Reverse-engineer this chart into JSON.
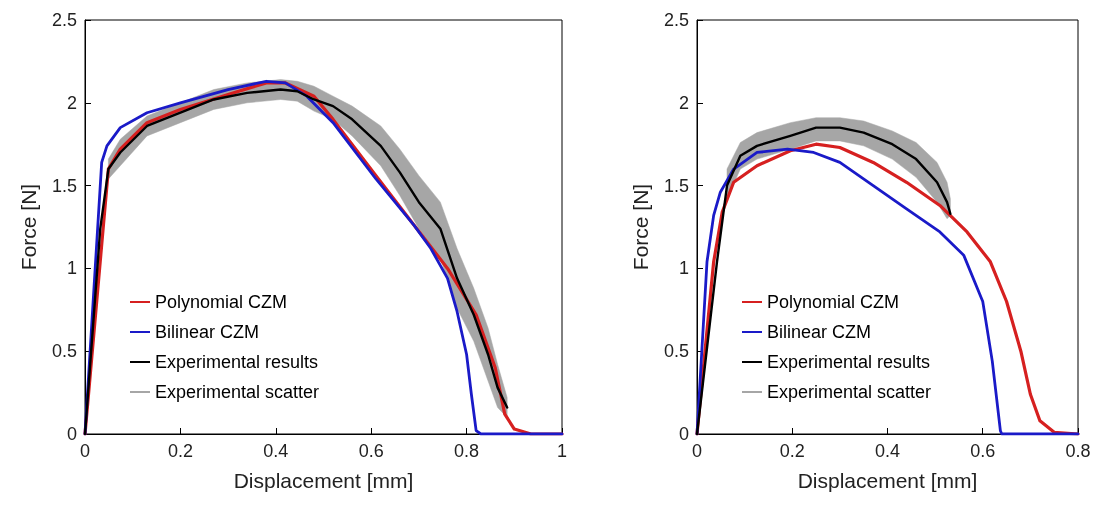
{
  "chart_data": [
    {
      "type": "line",
      "xlabel": "Displacement [mm]",
      "ylabel": "Force [N]",
      "xlim": [
        0,
        1
      ],
      "xticks": [
        0,
        0.2,
        0.4,
        0.6,
        0.8,
        1
      ],
      "ylim": [
        0,
        2.5
      ],
      "yticks": [
        0,
        0.5,
        1,
        1.5,
        2,
        2.5
      ],
      "grid": false,
      "legend": "bottom left",
      "marker": "none",
      "line_style": "solid",
      "series": [
        {
          "name": "Polynomial CZM",
          "color": "#d62020",
          "x": [
            0,
            0.049,
            0.074,
            0.13,
            0.2,
            0.3,
            0.38,
            0.42,
            0.48,
            0.52,
            0.61,
            0.69,
            0.76,
            0.82,
            0.86,
            0.88,
            0.9,
            0.935,
            1
          ],
          "values": [
            0,
            1.6,
            1.72,
            1.88,
            1.96,
            2.05,
            2.12,
            2.12,
            2.04,
            1.9,
            1.56,
            1.26,
            1.0,
            0.72,
            0.4,
            0.12,
            0.03,
            0,
            0
          ]
        },
        {
          "name": "Bilinear CZM",
          "color": "#1a1ac8",
          "x": [
            0,
            0.035,
            0.046,
            0.074,
            0.13,
            0.2,
            0.3,
            0.38,
            0.42,
            0.465,
            0.52,
            0.61,
            0.69,
            0.725,
            0.76,
            0.78,
            0.8,
            0.81,
            0.82,
            0.83,
            1
          ],
          "values": [
            0,
            1.64,
            1.74,
            1.85,
            1.94,
            2.0,
            2.08,
            2.13,
            2.12,
            2.04,
            1.88,
            1.54,
            1.26,
            1.12,
            0.94,
            0.74,
            0.48,
            0.24,
            0.02,
            0,
            0
          ]
        },
        {
          "name": "Experimental results",
          "color": "#000000",
          "x": [
            0,
            0.032,
            0.049,
            0.074,
            0.13,
            0.2,
            0.27,
            0.34,
            0.41,
            0.445,
            0.48,
            0.52,
            0.56,
            0.62,
            0.66,
            0.7,
            0.745,
            0.78,
            0.815,
            0.845,
            0.865,
            0.885
          ],
          "values": [
            0,
            1.24,
            1.6,
            1.7,
            1.86,
            1.94,
            2.02,
            2.06,
            2.08,
            2.07,
            2.02,
            1.98,
            1.9,
            1.74,
            1.58,
            1.4,
            1.24,
            0.94,
            0.72,
            0.48,
            0.28,
            0.16
          ]
        },
        {
          "name": "Experimental scatter",
          "color": "#a6a6a6",
          "x": [
            0.049,
            0.074,
            0.13,
            0.2,
            0.27,
            0.34,
            0.41,
            0.445,
            0.48,
            0.52,
            0.56,
            0.62,
            0.66,
            0.7,
            0.745,
            0.78,
            0.815,
            0.845,
            0.865,
            0.885
          ],
          "values": [
            null,
            null,
            null,
            null,
            null,
            null,
            null,
            null,
            null,
            null,
            null,
            null,
            null,
            null,
            null,
            null,
            null,
            null,
            null,
            null
          ],
          "upper": [
            1.66,
            1.78,
            1.92,
            2.0,
            2.08,
            2.12,
            2.14,
            2.13,
            2.1,
            2.04,
            1.98,
            1.86,
            1.72,
            1.56,
            1.4,
            1.12,
            0.88,
            0.64,
            0.42,
            0.22
          ],
          "lower": [
            1.54,
            1.62,
            1.8,
            1.88,
            1.96,
            2.0,
            2.02,
            2.01,
            1.95,
            1.9,
            1.8,
            1.62,
            1.44,
            1.24,
            1.06,
            0.76,
            0.56,
            0.32,
            0.16,
            0.1
          ]
        }
      ]
    },
    {
      "type": "line",
      "xlabel": "Displacement [mm]",
      "ylabel": "Force [N]",
      "xlim": [
        0,
        0.8
      ],
      "xticks": [
        0,
        0.2,
        0.4,
        0.6,
        0.8
      ],
      "ylim": [
        0,
        2.5
      ],
      "yticks": [
        0,
        0.5,
        1,
        1.5,
        2,
        2.5
      ],
      "grid": false,
      "legend": "bottom left",
      "marker": "none",
      "line_style": "solid",
      "series": [
        {
          "name": "Polynomial CZM",
          "color": "#d62020",
          "x": [
            0,
            0.035,
            0.053,
            0.077,
            0.126,
            0.196,
            0.25,
            0.3,
            0.37,
            0.44,
            0.51,
            0.567,
            0.616,
            0.65,
            0.68,
            0.7,
            0.72,
            0.75,
            0.8
          ],
          "values": [
            0,
            1.04,
            1.34,
            1.52,
            1.62,
            1.71,
            1.75,
            1.73,
            1.64,
            1.52,
            1.38,
            1.22,
            1.04,
            0.8,
            0.5,
            0.24,
            0.08,
            0.01,
            0
          ]
        },
        {
          "name": "Bilinear CZM",
          "color": "#1a1ac8",
          "x": [
            0,
            0.021,
            0.035,
            0.049,
            0.077,
            0.126,
            0.19,
            0.245,
            0.3,
            0.37,
            0.44,
            0.51,
            0.56,
            0.6,
            0.62,
            0.637,
            0.64,
            0.8
          ],
          "values": [
            0,
            1.04,
            1.32,
            1.46,
            1.6,
            1.7,
            1.72,
            1.7,
            1.64,
            1.5,
            1.36,
            1.22,
            1.08,
            0.8,
            0.44,
            0.02,
            0,
            0
          ]
        },
        {
          "name": "Experimental results",
          "color": "#000000",
          "x": [
            0,
            0.042,
            0.063,
            0.091,
            0.126,
            0.196,
            0.25,
            0.3,
            0.35,
            0.41,
            0.46,
            0.504,
            0.525,
            0.532
          ],
          "values": [
            0,
            1.04,
            1.5,
            1.68,
            1.74,
            1.8,
            1.85,
            1.85,
            1.82,
            1.75,
            1.66,
            1.52,
            1.4,
            1.33
          ]
        },
        {
          "name": "Experimental scatter",
          "color": "#a6a6a6",
          "x": [
            0.063,
            0.091,
            0.126,
            0.196,
            0.25,
            0.3,
            0.35,
            0.41,
            0.46,
            0.504,
            0.525,
            0.532
          ],
          "values": [
            null,
            null,
            null,
            null,
            null,
            null,
            null,
            null,
            null,
            null,
            null,
            null
          ],
          "upper": [
            1.6,
            1.76,
            1.82,
            1.88,
            1.91,
            1.91,
            1.89,
            1.83,
            1.76,
            1.64,
            1.52,
            1.42
          ],
          "lower": [
            1.42,
            1.6,
            1.66,
            1.72,
            1.77,
            1.77,
            1.74,
            1.66,
            1.55,
            1.4,
            1.3,
            1.32
          ]
        }
      ]
    }
  ]
}
